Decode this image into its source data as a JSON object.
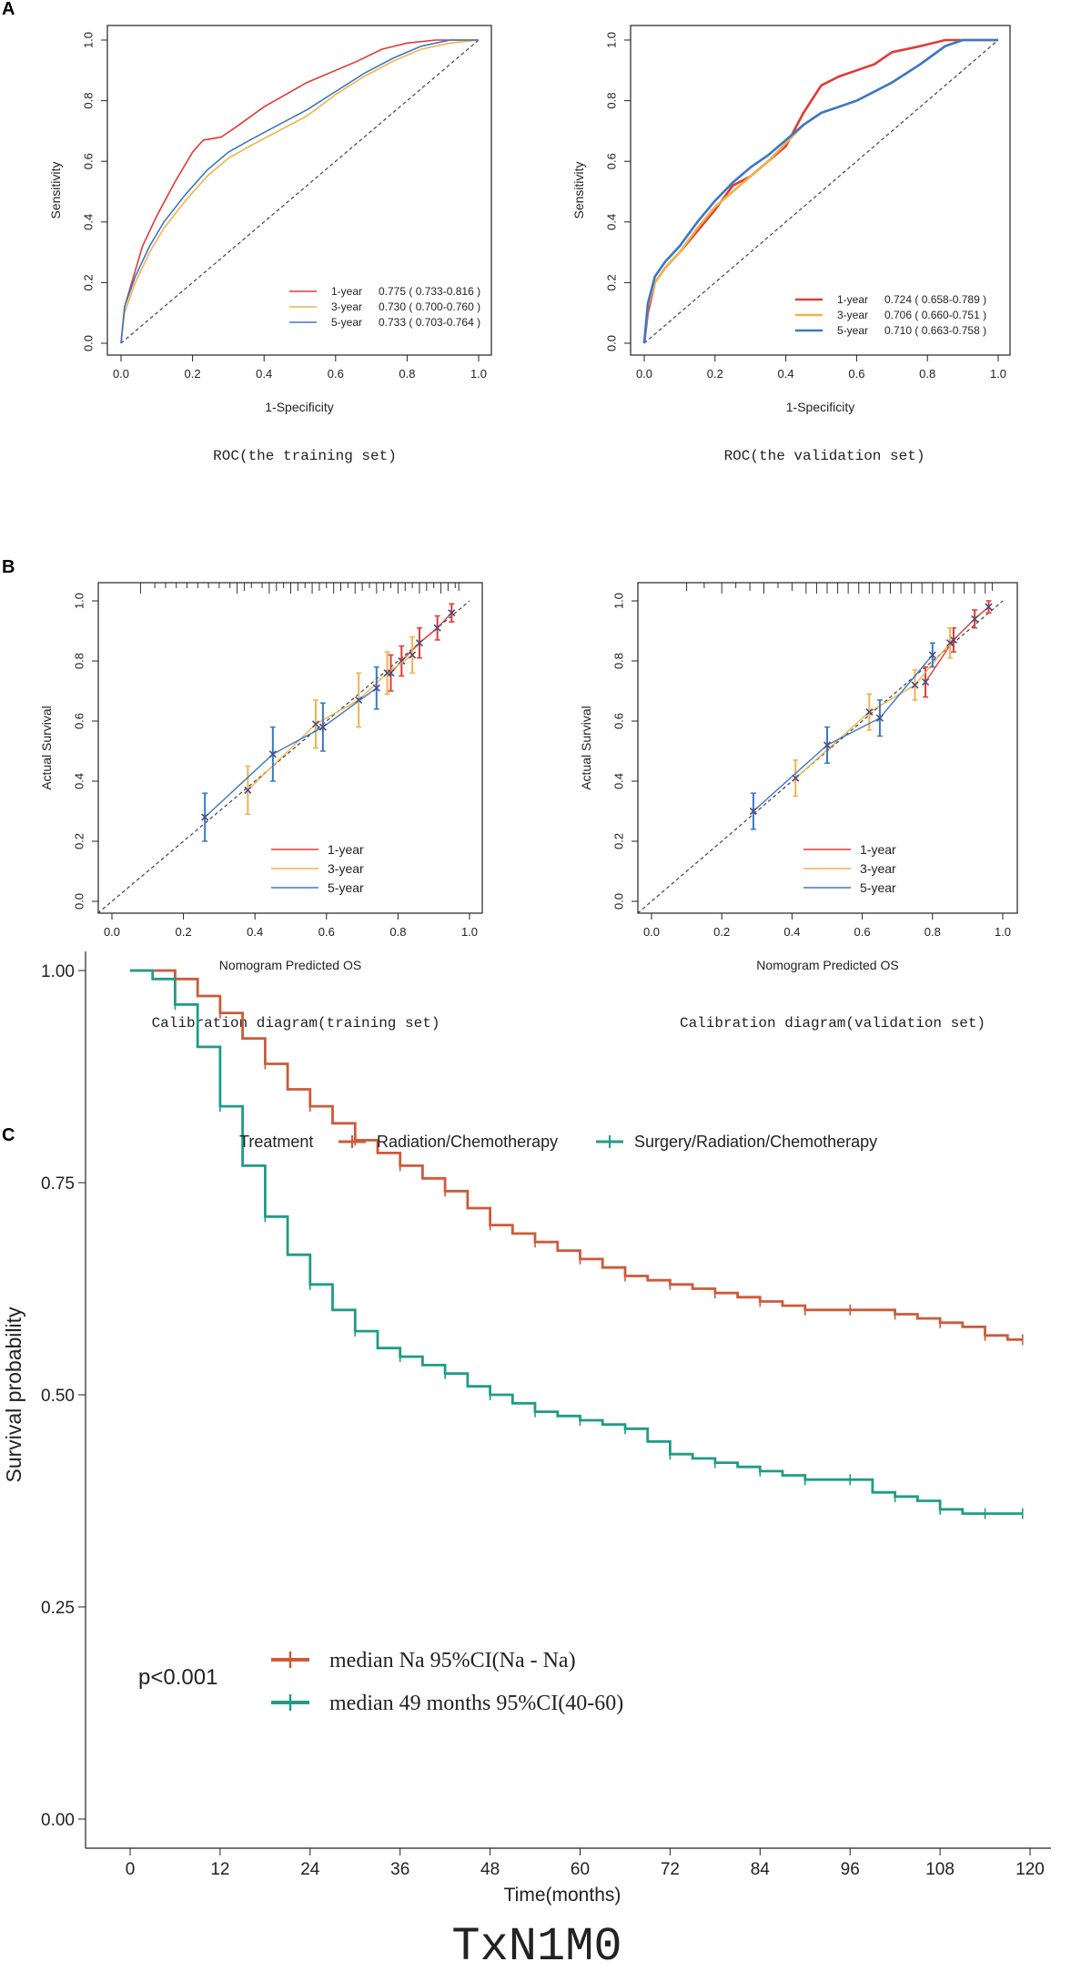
{
  "figure": {
    "panel_a_letter": "A",
    "panel_b_letter": "B",
    "panel_c_letter": "C"
  },
  "colors": {
    "red": "#e23a36",
    "orange": "#f2b24a",
    "blue": "#3a78c8",
    "km_red": "#cd5a3a",
    "km_teal": "#1f9c88",
    "diagonal": "#444444",
    "rug": "#333333"
  },
  "chart_data": [
    {
      "id": "roc_training",
      "type": "line",
      "title": "ROC(the training set)",
      "xlabel": "1-Specificity",
      "ylabel": "Sensitivity",
      "xlim": [
        0,
        1
      ],
      "ylim": [
        0,
        1
      ],
      "ticks": [
        "0.0",
        "0.2",
        "0.4",
        "0.6",
        "0.8",
        "1.0"
      ],
      "legend_position": "bottom-right",
      "series": [
        {
          "name": "1-year",
          "auc_label": "0.775 ( 0.733-0.816 )",
          "color": "red",
          "x": [
            0,
            0.01,
            0.03,
            0.06,
            0.1,
            0.15,
            0.2,
            0.23,
            0.28,
            0.33,
            0.4,
            0.46,
            0.52,
            0.6,
            0.66,
            0.73,
            0.8,
            0.88,
            1.0
          ],
          "y": [
            0,
            0.12,
            0.2,
            0.32,
            0.42,
            0.53,
            0.63,
            0.67,
            0.68,
            0.72,
            0.78,
            0.82,
            0.86,
            0.9,
            0.93,
            0.97,
            0.99,
            1.0,
            1.0
          ]
        },
        {
          "name": "3-year",
          "auc_label": "0.730 ( 0.700-0.760 )",
          "color": "orange",
          "x": [
            0,
            0.01,
            0.04,
            0.08,
            0.12,
            0.18,
            0.24,
            0.3,
            0.36,
            0.44,
            0.52,
            0.6,
            0.68,
            0.76,
            0.84,
            0.92,
            1.0
          ],
          "y": [
            0,
            0.1,
            0.2,
            0.3,
            0.38,
            0.47,
            0.55,
            0.61,
            0.65,
            0.7,
            0.75,
            0.82,
            0.88,
            0.93,
            0.97,
            0.99,
            1.0
          ]
        },
        {
          "name": "5-year",
          "auc_label": "0.733 ( 0.703-0.764 )",
          "color": "blue",
          "x": [
            0,
            0.01,
            0.04,
            0.08,
            0.12,
            0.18,
            0.24,
            0.3,
            0.36,
            0.44,
            0.52,
            0.6,
            0.68,
            0.76,
            0.84,
            0.92,
            1.0
          ],
          "y": [
            0,
            0.12,
            0.22,
            0.32,
            0.4,
            0.49,
            0.57,
            0.63,
            0.67,
            0.72,
            0.77,
            0.83,
            0.89,
            0.94,
            0.98,
            1.0,
            1.0
          ]
        }
      ]
    },
    {
      "id": "roc_validation",
      "type": "line",
      "title": "ROC(the validation set)",
      "xlabel": "1-Specificity",
      "ylabel": "Sensitivity",
      "xlim": [
        0,
        1
      ],
      "ylim": [
        0,
        1
      ],
      "ticks": [
        "0.0",
        "0.2",
        "0.4",
        "0.6",
        "0.8",
        "1.0"
      ],
      "legend_position": "bottom-right",
      "series": [
        {
          "name": "1-year",
          "auc_label": "0.724 ( 0.658-0.789 )",
          "color": "red",
          "x": [
            0,
            0.01,
            0.03,
            0.06,
            0.1,
            0.15,
            0.2,
            0.25,
            0.3,
            0.35,
            0.4,
            0.45,
            0.5,
            0.55,
            0.6,
            0.65,
            0.7,
            0.78,
            0.85,
            0.9,
            1.0
          ],
          "y": [
            0,
            0.1,
            0.2,
            0.25,
            0.3,
            0.37,
            0.44,
            0.52,
            0.55,
            0.6,
            0.65,
            0.76,
            0.85,
            0.88,
            0.9,
            0.92,
            0.96,
            0.98,
            1.0,
            1.0,
            1.0
          ]
        },
        {
          "name": "3-year",
          "auc_label": "0.706 ( 0.660-0.751 )",
          "color": "orange",
          "x": [
            0,
            0.01,
            0.03,
            0.06,
            0.1,
            0.15,
            0.2,
            0.25,
            0.3,
            0.35,
            0.4,
            0.45,
            0.5,
            0.55,
            0.6,
            0.65,
            0.7,
            0.78,
            0.85,
            0.9,
            1.0
          ],
          "y": [
            0,
            0.12,
            0.2,
            0.25,
            0.3,
            0.38,
            0.45,
            0.5,
            0.55,
            0.6,
            0.66,
            0.72,
            0.76,
            0.78,
            0.8,
            0.83,
            0.86,
            0.92,
            0.98,
            1.0,
            1.0
          ]
        },
        {
          "name": "5-year",
          "auc_label": "0.710 ( 0.663-0.758 )",
          "color": "blue",
          "x": [
            0,
            0.01,
            0.03,
            0.06,
            0.1,
            0.15,
            0.2,
            0.25,
            0.3,
            0.35,
            0.4,
            0.45,
            0.5,
            0.55,
            0.6,
            0.65,
            0.7,
            0.78,
            0.85,
            0.9,
            1.0
          ],
          "y": [
            0,
            0.13,
            0.22,
            0.27,
            0.32,
            0.4,
            0.47,
            0.53,
            0.58,
            0.62,
            0.67,
            0.72,
            0.76,
            0.78,
            0.8,
            0.83,
            0.86,
            0.92,
            0.98,
            1.0,
            1.0
          ]
        }
      ]
    },
    {
      "id": "calibration_training",
      "type": "scatter",
      "title": "Calibration diagram(training set)",
      "xlabel": "Nomogram Predicted OS",
      "ylabel": "Actual Survival",
      "xlim": [
        0,
        1
      ],
      "ylim": [
        0,
        1
      ],
      "ticks": [
        "0.0",
        "0.2",
        "0.4",
        "0.6",
        "0.8",
        "1.0"
      ],
      "legend_position": "bottom-right",
      "series": [
        {
          "name": "1-year",
          "color": "red",
          "x": [
            0.78,
            0.81,
            0.86,
            0.91,
            0.95
          ],
          "y": [
            0.76,
            0.8,
            0.86,
            0.91,
            0.96
          ],
          "err": [
            0.06,
            0.05,
            0.05,
            0.04,
            0.03
          ]
        },
        {
          "name": "3-year",
          "color": "orange",
          "x": [
            0.38,
            0.57,
            0.69,
            0.77,
            0.84
          ],
          "y": [
            0.37,
            0.59,
            0.67,
            0.76,
            0.82
          ],
          "err": [
            0.08,
            0.08,
            0.09,
            0.07,
            0.06
          ]
        },
        {
          "name": "5-year",
          "color": "blue",
          "x": [
            0.26,
            0.45,
            0.59,
            0.74
          ],
          "y": [
            0.28,
            0.49,
            0.58,
            0.71
          ],
          "err": [
            0.08,
            0.09,
            0.08,
            0.07
          ]
        }
      ],
      "rug": [
        0.08,
        0.12,
        0.15,
        0.18,
        0.21,
        0.24,
        0.27,
        0.3,
        0.33,
        0.35,
        0.37,
        0.39,
        0.42,
        0.44,
        0.46,
        0.48,
        0.5,
        0.52,
        0.54,
        0.56,
        0.58,
        0.6,
        0.62,
        0.64,
        0.66,
        0.68,
        0.7,
        0.72,
        0.74,
        0.76,
        0.78,
        0.8,
        0.82,
        0.84,
        0.86,
        0.88,
        0.9,
        0.92,
        0.94,
        0.96,
        0.97
      ]
    },
    {
      "id": "calibration_validation",
      "type": "scatter",
      "title": "Calibration diagram(validation set)",
      "xlabel": "Nomogram Predicted OS",
      "ylabel": "Actual Survival",
      "xlim": [
        0,
        1
      ],
      "ylim": [
        0,
        1
      ],
      "ticks": [
        "0.0",
        "0.2",
        "0.4",
        "0.6",
        "0.8",
        "1.0"
      ],
      "legend_position": "bottom-right",
      "series": [
        {
          "name": "1-year",
          "color": "red",
          "x": [
            0.78,
            0.86,
            0.92,
            0.96
          ],
          "y": [
            0.73,
            0.87,
            0.94,
            0.98
          ],
          "err": [
            0.05,
            0.04,
            0.03,
            0.02
          ]
        },
        {
          "name": "3-year",
          "color": "orange",
          "x": [
            0.41,
            0.62,
            0.75,
            0.85
          ],
          "y": [
            0.41,
            0.63,
            0.72,
            0.86
          ],
          "err": [
            0.06,
            0.06,
            0.05,
            0.05
          ]
        },
        {
          "name": "5-year",
          "color": "blue",
          "x": [
            0.29,
            0.5,
            0.65,
            0.8
          ],
          "y": [
            0.3,
            0.52,
            0.61,
            0.82
          ],
          "err": [
            0.06,
            0.06,
            0.06,
            0.04
          ]
        }
      ],
      "rug": [
        0.1,
        0.15,
        0.2,
        0.24,
        0.28,
        0.32,
        0.36,
        0.4,
        0.44,
        0.47,
        0.5,
        0.53,
        0.56,
        0.59,
        0.62,
        0.65,
        0.68,
        0.71,
        0.74,
        0.77,
        0.8,
        0.83,
        0.86,
        0.89,
        0.92,
        0.95,
        0.97
      ]
    },
    {
      "id": "km_curve",
      "type": "line",
      "title": "TxN1M0",
      "xlabel": "Time(months)",
      "ylabel": "Survival probability",
      "xlim": [
        0,
        120
      ],
      "ylim": [
        0,
        1
      ],
      "x_ticks": [
        "0",
        "12",
        "24",
        "36",
        "48",
        "60",
        "72",
        "84",
        "96",
        "108",
        "120"
      ],
      "y_ticks": [
        "0.00",
        "0.25",
        "0.50",
        "0.75",
        "1.00"
      ],
      "legend_title": "Treatment",
      "legend_position": "top",
      "p_value": "p<0.001",
      "series": [
        {
          "name": "Radiation/Chemotherapy",
          "color": "km_red",
          "median_label": "median Na 95%CI(Na - Na)",
          "x": [
            0,
            3,
            6,
            9,
            12,
            15,
            18,
            21,
            24,
            27,
            30,
            33,
            36,
            39,
            42,
            45,
            48,
            51,
            54,
            57,
            60,
            63,
            66,
            69,
            72,
            75,
            78,
            81,
            84,
            87,
            90,
            93,
            96,
            99,
            102,
            105,
            108,
            111,
            114,
            117,
            119
          ],
          "y": [
            1.0,
            1.0,
            0.99,
            0.97,
            0.95,
            0.92,
            0.89,
            0.86,
            0.84,
            0.82,
            0.8,
            0.785,
            0.77,
            0.755,
            0.74,
            0.72,
            0.7,
            0.69,
            0.68,
            0.67,
            0.66,
            0.65,
            0.64,
            0.635,
            0.63,
            0.625,
            0.62,
            0.615,
            0.61,
            0.605,
            0.6,
            0.6,
            0.6,
            0.6,
            0.595,
            0.59,
            0.585,
            0.58,
            0.57,
            0.565,
            0.565
          ]
        },
        {
          "name": "Surgery/Radiation/Chemotherapy",
          "color": "km_teal",
          "median_label": "median 49 months 95%CI(40-60)",
          "x": [
            0,
            3,
            6,
            9,
            12,
            15,
            18,
            21,
            24,
            27,
            30,
            33,
            36,
            39,
            42,
            45,
            48,
            51,
            54,
            57,
            60,
            63,
            66,
            69,
            72,
            75,
            78,
            81,
            84,
            87,
            90,
            93,
            96,
            99,
            102,
            105,
            108,
            111,
            114,
            117,
            119
          ],
          "y": [
            1.0,
            0.99,
            0.96,
            0.91,
            0.84,
            0.77,
            0.71,
            0.665,
            0.63,
            0.6,
            0.575,
            0.555,
            0.545,
            0.535,
            0.525,
            0.51,
            0.5,
            0.49,
            0.48,
            0.475,
            0.47,
            0.465,
            0.46,
            0.445,
            0.43,
            0.425,
            0.42,
            0.415,
            0.41,
            0.405,
            0.4,
            0.4,
            0.4,
            0.385,
            0.38,
            0.375,
            0.365,
            0.36,
            0.36,
            0.36,
            0.36
          ]
        }
      ]
    }
  ]
}
